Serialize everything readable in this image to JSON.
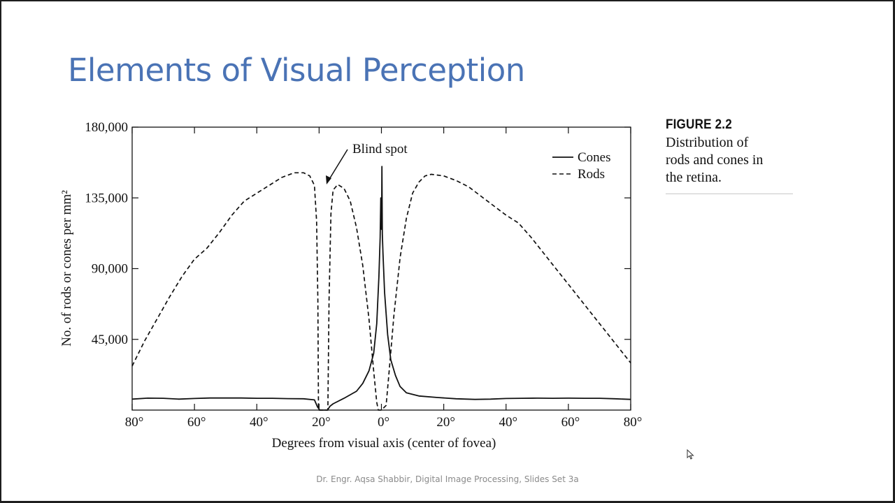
{
  "slide": {
    "title": "Elements of Visual Perception",
    "footer": "Dr. Engr. Aqsa Shabbir, Digital Image Processing, Slides Set 3a"
  },
  "caption": {
    "heading": "FIGURE 2.2",
    "lines": [
      "Distribution of",
      "rods and cones in",
      "the retina."
    ]
  },
  "chart_data": {
    "type": "line",
    "title": "",
    "xlabel": "Degrees from visual axis (center of fovea)",
    "ylabel": "No. of rods or cones per mm²",
    "xlim": [
      -80,
      80
    ],
    "ylim": [
      0,
      180000
    ],
    "x_tick_labels": [
      "80°",
      "60°",
      "40°",
      "20°",
      "0°",
      "20°",
      "40°",
      "60°",
      "80°"
    ],
    "x_tick_values": [
      -80,
      -60,
      -40,
      -20,
      0,
      20,
      40,
      60,
      80
    ],
    "y_tick_labels": [
      "180,000",
      "135,000",
      "90,000",
      "45,000"
    ],
    "y_tick_values": [
      180000,
      135000,
      90000,
      45000
    ],
    "annotation": {
      "text": "Blind spot",
      "x": -17,
      "y": 145000
    },
    "legend_position": "top-right",
    "series": [
      {
        "name": "Cones",
        "style": "solid",
        "points": [
          [
            -80,
            7000
          ],
          [
            -75,
            7600
          ],
          [
            -70,
            7500
          ],
          [
            -65,
            7000
          ],
          [
            -60,
            7400
          ],
          [
            -55,
            7700
          ],
          [
            -50,
            7700
          ],
          [
            -45,
            7700
          ],
          [
            -40,
            7500
          ],
          [
            -35,
            7500
          ],
          [
            -30,
            7300
          ],
          [
            -25,
            7200
          ],
          [
            -21.5,
            6500
          ],
          [
            -20.5,
            2000
          ],
          [
            -19.8,
            0
          ],
          [
            -17.3,
            0
          ],
          [
            -16.5,
            2500
          ],
          [
            -15.5,
            4000
          ],
          [
            -12,
            7500
          ],
          [
            -8,
            12000
          ],
          [
            -6,
            17000
          ],
          [
            -4,
            25000
          ],
          [
            -2.5,
            36000
          ],
          [
            -1.5,
            55000
          ],
          [
            -0.8,
            85000
          ],
          [
            -0.4,
            110000
          ],
          [
            -0.2,
            135000
          ],
          [
            0.05,
            115000
          ],
          [
            0.15,
            155000
          ],
          [
            0.3,
            112000
          ],
          [
            0.5,
            100000
          ],
          [
            1,
            75000
          ],
          [
            2,
            48000
          ],
          [
            3,
            32000
          ],
          [
            4.5,
            22000
          ],
          [
            6,
            15000
          ],
          [
            8,
            11000
          ],
          [
            12,
            9000
          ],
          [
            18,
            8000
          ],
          [
            24,
            7200
          ],
          [
            30,
            6800
          ],
          [
            35,
            7000
          ],
          [
            40,
            7400
          ],
          [
            45,
            7500
          ],
          [
            50,
            7600
          ],
          [
            55,
            7500
          ],
          [
            60,
            7600
          ],
          [
            65,
            7500
          ],
          [
            70,
            7500
          ],
          [
            75,
            7200
          ],
          [
            80,
            6800
          ]
        ]
      },
      {
        "name": "Rods",
        "style": "dashed",
        "points": [
          [
            -80,
            28000
          ],
          [
            -76,
            44000
          ],
          [
            -72,
            58000
          ],
          [
            -68,
            72000
          ],
          [
            -64,
            85000
          ],
          [
            -60,
            96000
          ],
          [
            -56,
            103000
          ],
          [
            -52,
            113000
          ],
          [
            -48,
            124000
          ],
          [
            -44,
            133000
          ],
          [
            -40,
            138000
          ],
          [
            -36,
            143000
          ],
          [
            -32,
            148000
          ],
          [
            -28,
            151000
          ],
          [
            -25,
            151000
          ],
          [
            -23,
            149000
          ],
          [
            -21.5,
            143000
          ],
          [
            -20.8,
            120000
          ],
          [
            -20.4,
            70000
          ],
          [
            -20.2,
            0
          ],
          [
            -17.2,
            0
          ],
          [
            -16.8,
            70000
          ],
          [
            -16.2,
            125000
          ],
          [
            -15.5,
            140000
          ],
          [
            -14,
            143500
          ],
          [
            -12,
            141000
          ],
          [
            -10,
            133000
          ],
          [
            -8,
            116000
          ],
          [
            -6,
            92000
          ],
          [
            -4,
            58000
          ],
          [
            -2.5,
            25000
          ],
          [
            -1.5,
            5000
          ],
          [
            -1,
            0
          ],
          [
            0,
            0
          ],
          [
            1.5,
            3000
          ],
          [
            2.5,
            25000
          ],
          [
            4,
            60000
          ],
          [
            6,
            97000
          ],
          [
            8,
            122000
          ],
          [
            10,
            138000
          ],
          [
            12,
            145000
          ],
          [
            14,
            149000
          ],
          [
            16,
            150000
          ],
          [
            20,
            149000
          ],
          [
            24,
            146000
          ],
          [
            28,
            142000
          ],
          [
            32,
            136000
          ],
          [
            36,
            130000
          ],
          [
            40,
            124000
          ],
          [
            44,
            119000
          ],
          [
            48,
            110000
          ],
          [
            52,
            100000
          ],
          [
            56,
            90000
          ],
          [
            60,
            80000
          ],
          [
            64,
            70000
          ],
          [
            68,
            60000
          ],
          [
            72,
            50000
          ],
          [
            76,
            40000
          ],
          [
            80,
            30000
          ]
        ]
      }
    ]
  }
}
